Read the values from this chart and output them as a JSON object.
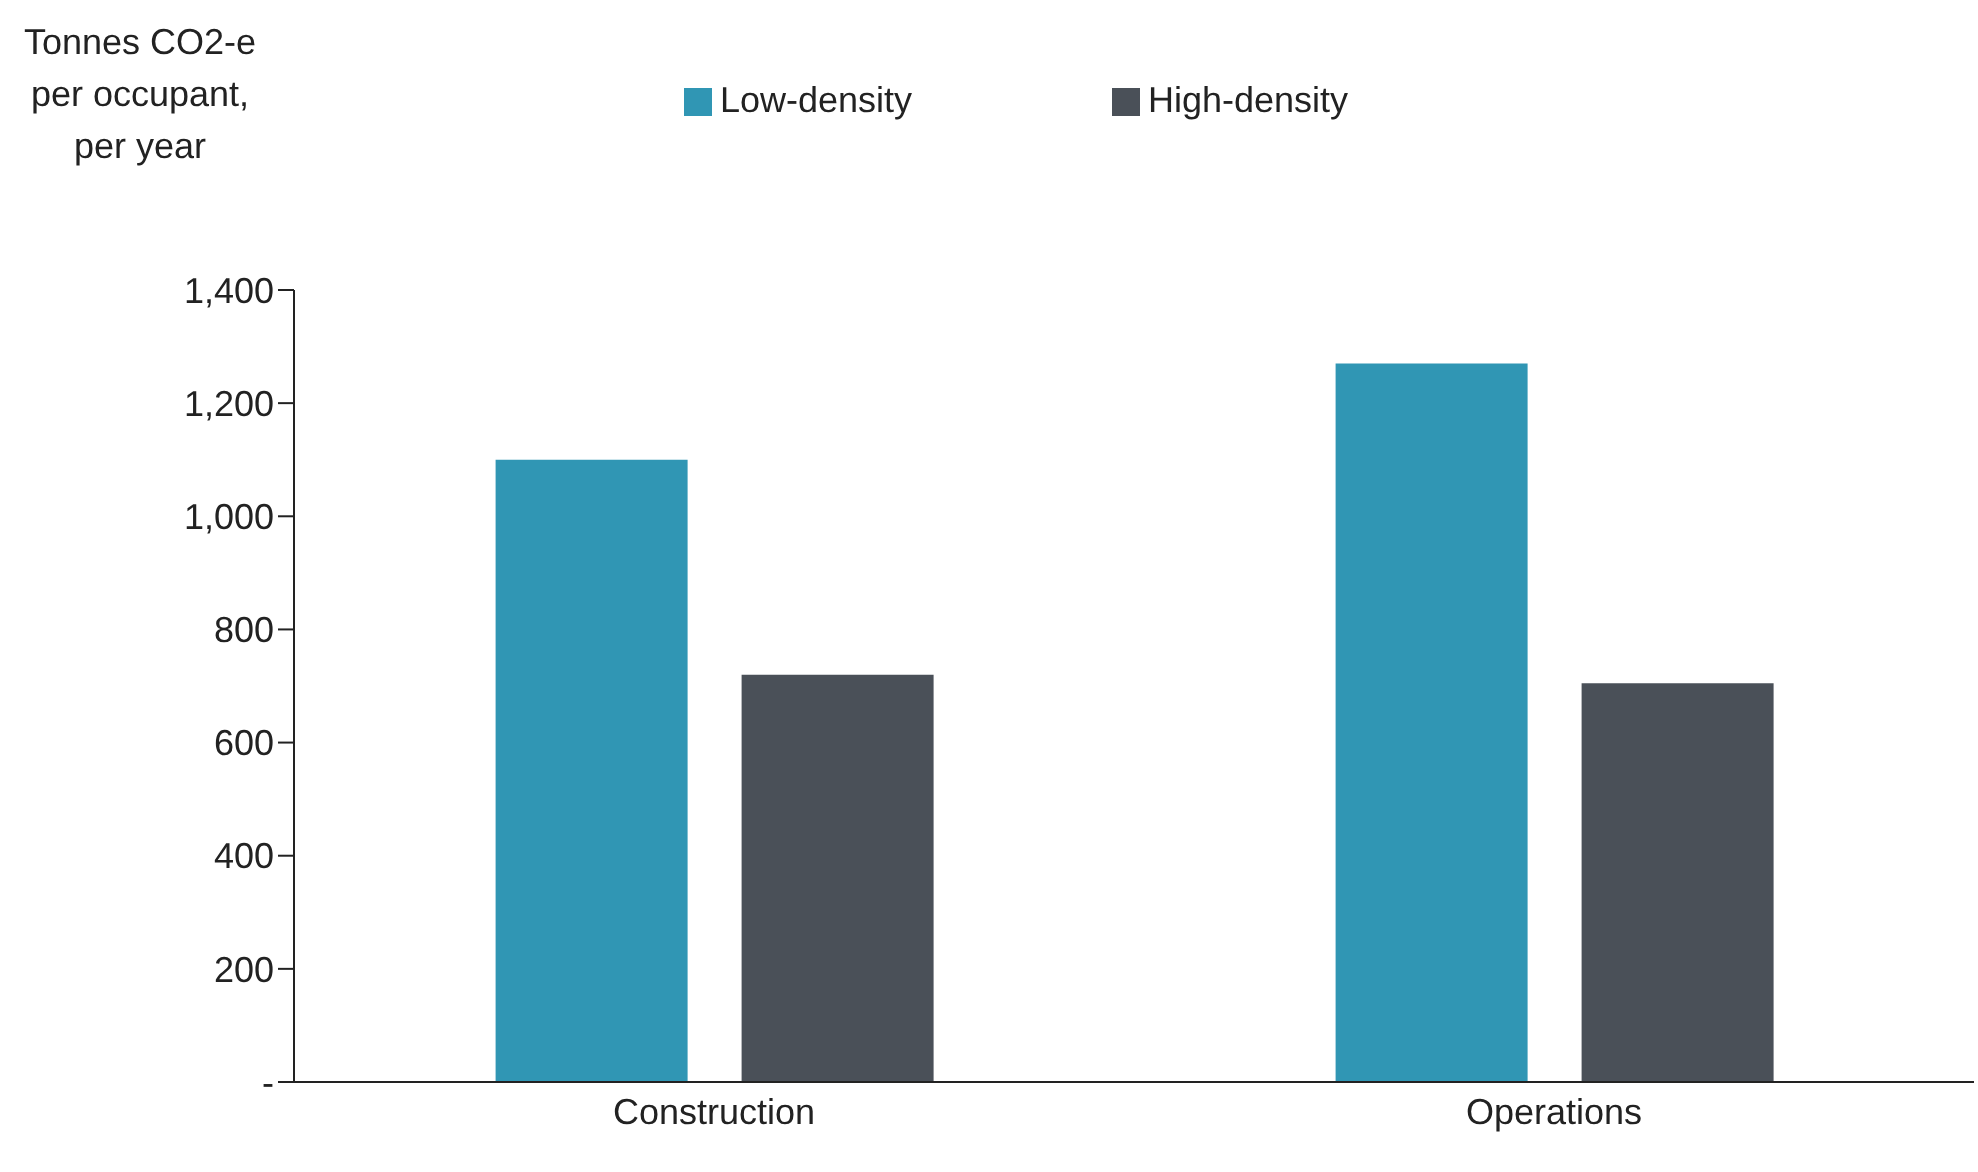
{
  "chart_data": {
    "type": "bar",
    "ylabel": "Tonnes CO2-e per occupant, per year",
    "categories": [
      "Construction",
      "Operations"
    ],
    "series": [
      {
        "name": "Low-density",
        "color": "#3096b4",
        "values": [
          1100,
          1270
        ]
      },
      {
        "name": "High-density",
        "color": "#4a5058",
        "values": [
          720,
          705
        ]
      }
    ],
    "ylim": [
      0,
      1400
    ],
    "yticks": [
      {
        "value": 0,
        "label": "-"
      },
      200,
      400,
      600,
      800,
      {
        "value": 1000,
        "label": "1,000"
      },
      {
        "value": 1200,
        "label": "1,200"
      },
      {
        "value": 1400,
        "label": "1,400"
      }
    ],
    "grid": false,
    "legend": "top"
  }
}
